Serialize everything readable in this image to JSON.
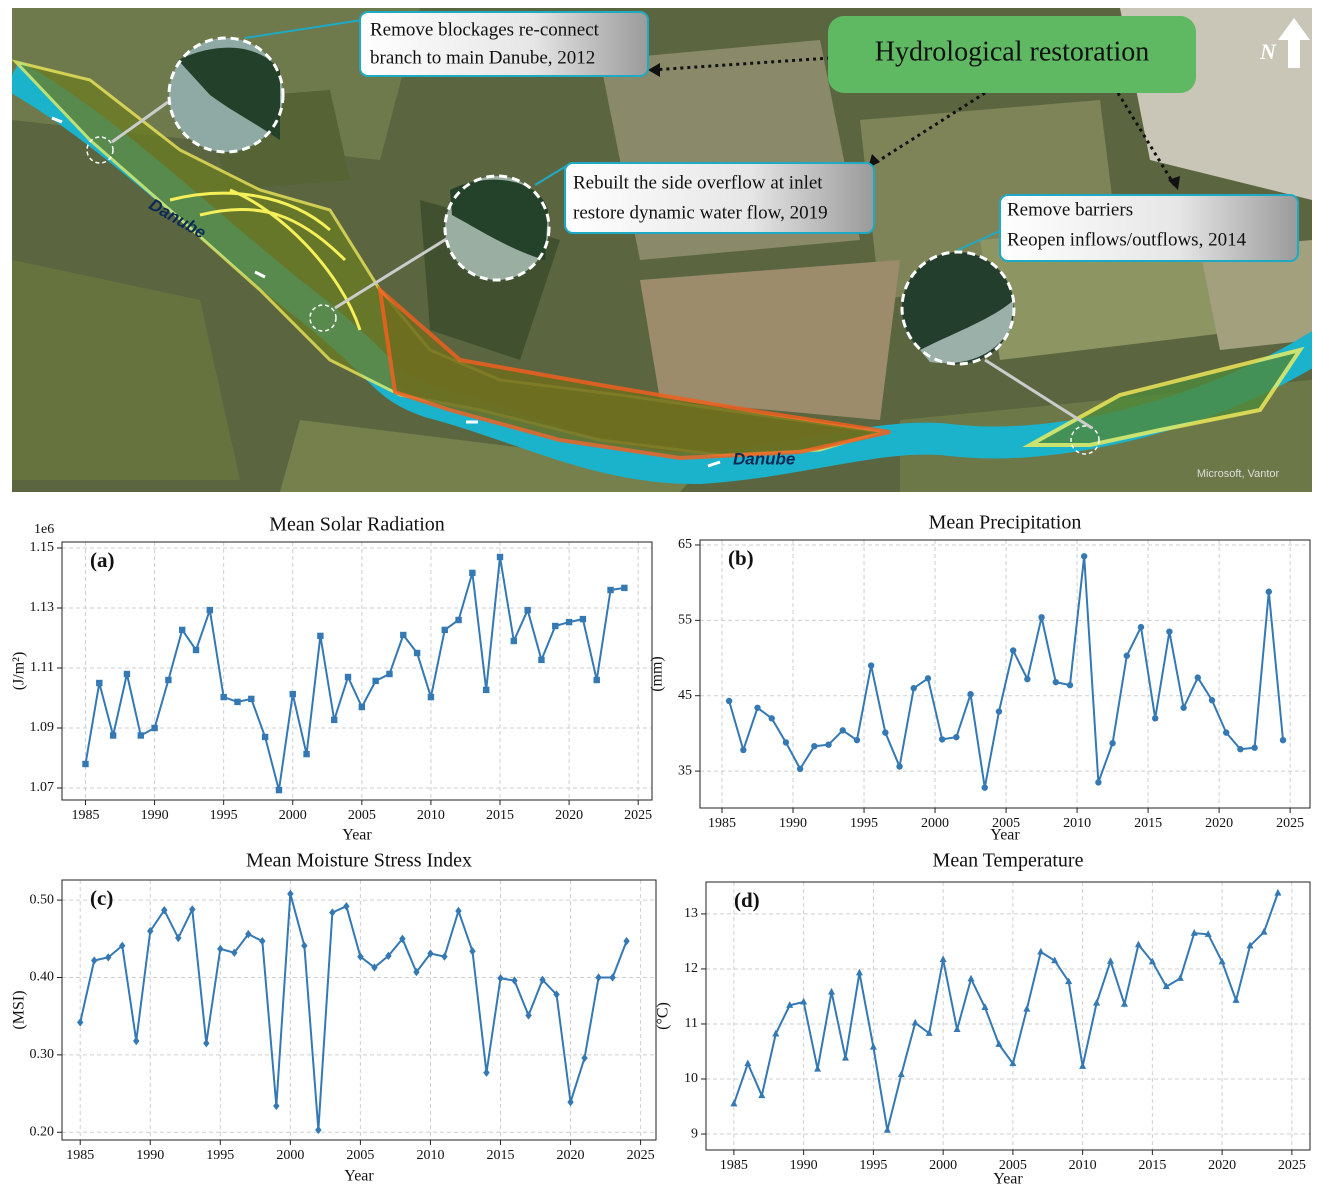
{
  "map": {
    "title": "Hydrological restoration",
    "annotations": [
      {
        "lines": [
          "Remove blockages re-connect",
          "branch to main Danube, 2012"
        ]
      },
      {
        "lines": [
          "Rebuilt the side overflow at inlet",
          "restore dynamic water flow, 2019"
        ]
      },
      {
        "lines": [
          "Remove barriers",
          "Reopen inflows/outflows, 2014"
        ]
      }
    ],
    "river_labels": [
      "Danube",
      "Danube"
    ],
    "north": "N",
    "credit": "Microsoft, Vantor"
  },
  "chart_data": [
    {
      "type": "line",
      "title": "Mean Solar Radiation",
      "panel_label": "(a)",
      "xlabel": "Year",
      "ylabel": "(J/m²)",
      "y_offset_label": "1e6",
      "marker": "square",
      "color": "#3478b4",
      "grid": true,
      "x": [
        1985,
        1986,
        1987,
        1988,
        1989,
        1990,
        1991,
        1992,
        1993,
        1994,
        1995,
        1996,
        1997,
        1998,
        1999,
        2000,
        2001,
        2002,
        2003,
        2004,
        2005,
        2006,
        2007,
        2008,
        2009,
        2010,
        2011,
        2012,
        2013,
        2014,
        2015,
        2016,
        2017,
        2018,
        2019,
        2020,
        2021,
        2022,
        2023,
        2024
      ],
      "values": [
        1.078,
        1.105,
        1.0875,
        1.108,
        1.0875,
        1.09,
        1.106,
        1.1227,
        1.116,
        1.1293,
        1.1003,
        1.0987,
        1.0997,
        1.087,
        1.0693,
        1.1013,
        1.0813,
        1.1207,
        1.0927,
        1.107,
        1.097,
        1.1057,
        1.108,
        1.121,
        1.115,
        1.1003,
        1.1227,
        1.126,
        1.1417,
        1.1027,
        1.147,
        1.119,
        1.1293,
        1.1127,
        1.124,
        1.1253,
        1.1263,
        1.106,
        1.136,
        1.1367
      ],
      "xlim": [
        1983.3,
        2026
      ],
      "xticks": [
        1985,
        1990,
        1995,
        2000,
        2005,
        2010,
        2015,
        2020,
        2025
      ],
      "ylim": [
        1.066,
        1.152
      ],
      "yticks": [
        1.07,
        1.09,
        1.11,
        1.13,
        1.15
      ]
    },
    {
      "type": "line",
      "title": "Mean Precipitation",
      "panel_label": "(b)",
      "xlabel": "Year",
      "ylabel": "(mm)",
      "marker": "circle",
      "color": "#3478b4",
      "grid": true,
      "x": [
        1985.5,
        1986.5,
        1987.5,
        1988.5,
        1989.5,
        1990.5,
        1991.5,
        1992.5,
        1993.5,
        1994.5,
        1995.5,
        1996.5,
        1997.5,
        1998.5,
        1999.5,
        2000.5,
        2001.5,
        2002.5,
        2003.5,
        2004.5,
        2005.5,
        2006.5,
        2007.5,
        2008.5,
        2009.5,
        2010.5,
        2011.5,
        2012.5,
        2013.5,
        2014.5,
        2015.5,
        2016.5,
        2017.5,
        2018.5,
        2019.5,
        2020.5,
        2021.5,
        2022.5,
        2023.5,
        2024.5
      ],
      "values": [
        44.3,
        37.8,
        43.4,
        42.0,
        38.8,
        35.3,
        38.3,
        38.5,
        40.4,
        39.1,
        49.0,
        40.1,
        35.6,
        46.0,
        47.3,
        39.2,
        39.5,
        45.2,
        32.8,
        42.9,
        51.0,
        47.2,
        55.4,
        46.8,
        46.4,
        63.5,
        33.5,
        38.7,
        50.3,
        54.1,
        42.0,
        53.5,
        43.4,
        47.4,
        44.4,
        40.1,
        37.9,
        38.1,
        58.8,
        39.1
      ],
      "xlim": [
        1983.45,
        2026.4
      ],
      "xticks": [
        1985,
        1990,
        1995,
        2000,
        2005,
        2010,
        2015,
        2020,
        2025
      ],
      "ylim": [
        30.1,
        65.66
      ],
      "yticks": [
        35,
        45,
        55,
        65
      ]
    },
    {
      "type": "line",
      "title": "Mean Moisture Stress Index",
      "panel_label": "(c)",
      "xlabel": "Year",
      "ylabel": "(MSI)",
      "marker": "diamond",
      "color": "#3478b4",
      "grid": true,
      "x": [
        1985,
        1986,
        1987,
        1988,
        1989,
        1990,
        1991,
        1992,
        1993,
        1994,
        1995,
        1996,
        1997,
        1998,
        1999,
        2000,
        2001,
        2002,
        2003,
        2004,
        2005,
        2006,
        2007,
        2008,
        2009,
        2010,
        2011,
        2012,
        2013,
        2014,
        2015,
        2016,
        2017,
        2018,
        2019,
        2020,
        2021,
        2022,
        2023,
        2024
      ],
      "values": [
        0.342,
        0.422,
        0.426,
        0.441,
        0.318,
        0.46,
        0.487,
        0.451,
        0.488,
        0.315,
        0.437,
        0.432,
        0.456,
        0.447,
        0.234,
        0.508,
        0.441,
        0.203,
        0.484,
        0.492,
        0.427,
        0.413,
        0.428,
        0.45,
        0.407,
        0.431,
        0.427,
        0.486,
        0.434,
        0.277,
        0.399,
        0.396,
        0.351,
        0.397,
        0.378,
        0.239,
        0.296,
        0.4,
        0.4,
        0.447
      ],
      "xlim": [
        1983.7,
        2026.1
      ],
      "xticks": [
        1985,
        1990,
        1995,
        2000,
        2005,
        2010,
        2015,
        2020,
        2025
      ],
      "ylim": [
        0.19,
        0.526
      ],
      "yticks": [
        {
          "value": 0.2,
          "label": "0.20"
        },
        {
          "value": 0.3,
          "label": "0.30"
        },
        {
          "value": 0.4,
          "label": "0.40"
        },
        {
          "value": 0.5,
          "label": "0.50"
        }
      ]
    },
    {
      "type": "line",
      "title": "Mean Temperature",
      "panel_label": "(d)",
      "xlabel": "Year",
      "ylabel": "(°C)",
      "marker": "triangle",
      "color": "#3478b4",
      "grid": true,
      "x": [
        1985,
        1986,
        1987,
        1988,
        1989,
        1990,
        1991,
        1992,
        1993,
        1994,
        1995,
        1996,
        1997,
        1998,
        1999,
        2000,
        2001,
        2002,
        2003,
        2004,
        2005,
        2006,
        2007,
        2008,
        2009,
        2010,
        2011,
        2012,
        2013,
        2014,
        2015,
        2016,
        2017,
        2018,
        2019,
        2020,
        2021,
        2022,
        2023,
        2024
      ],
      "values": [
        9.55,
        10.28,
        9.7,
        10.82,
        11.34,
        11.4,
        10.18,
        11.58,
        10.38,
        11.93,
        10.58,
        9.07,
        10.08,
        11.02,
        10.83,
        12.17,
        10.9,
        11.82,
        11.3,
        10.63,
        10.28,
        11.27,
        12.31,
        12.15,
        11.77,
        10.23,
        11.38,
        12.14,
        11.36,
        12.44,
        12.13,
        11.68,
        11.83,
        12.65,
        12.63,
        12.13,
        11.43,
        12.42,
        12.67,
        13.38
      ],
      "xlim": [
        1983,
        2026.3
      ],
      "xticks": [
        1985,
        1990,
        1995,
        2000,
        2005,
        2010,
        2015,
        2020,
        2025
      ],
      "ylim": [
        8.71,
        13.58
      ],
      "yticks": [
        9,
        10,
        11,
        12,
        13
      ]
    }
  ]
}
